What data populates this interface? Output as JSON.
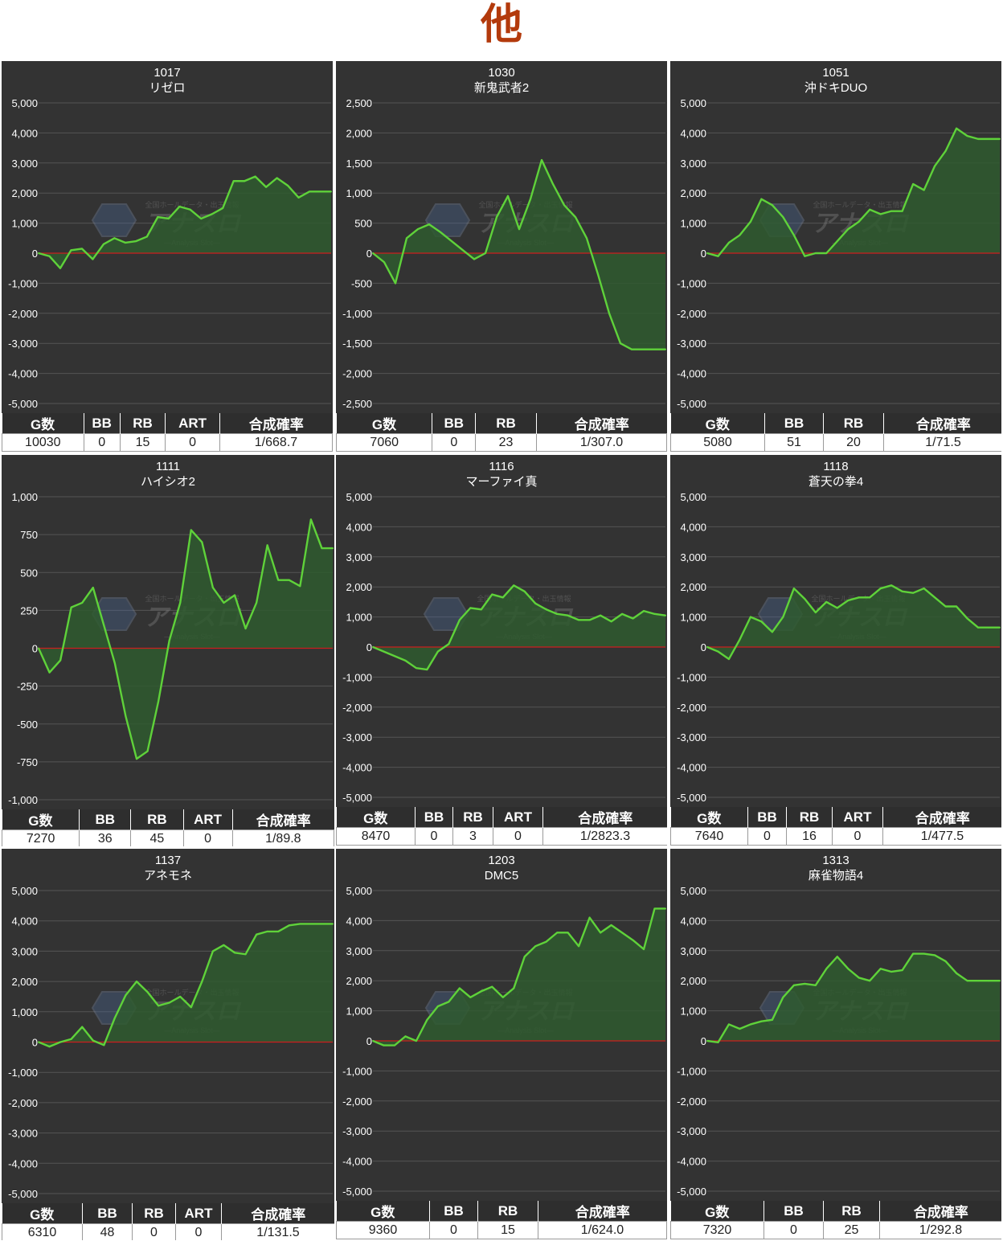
{
  "page": {
    "title": "他"
  },
  "watermark": {
    "top": "全国ホールデータ・出玉情報",
    "main": "アナスロ",
    "sub": "—Analysis Slot—"
  },
  "colors": {
    "background": "#333333",
    "line": "#5fd23a",
    "fill": "#2f5a2f",
    "zero": "#cc1f1f",
    "grid": "#555555"
  },
  "chart_data": [
    {
      "type": "area",
      "number": "1017",
      "title": "リゼロ",
      "ylim": [
        -5000,
        5000
      ],
      "yticks": [
        "5,000",
        "4,000",
        "3,000",
        "2,000",
        "1,000",
        "0",
        "-1,000",
        "-2,000",
        "-3,000",
        "-4,000",
        "-5,000"
      ],
      "values": [
        0,
        -100,
        -500,
        100,
        150,
        -200,
        300,
        500,
        350,
        400,
        550,
        1200,
        1150,
        1550,
        1450,
        1150,
        1300,
        1500,
        2400,
        2400,
        2550,
        2200,
        2500,
        2250,
        1850,
        2050,
        2050,
        2050
      ],
      "headers": [
        "G数",
        "BB",
        "RB",
        "ART",
        "合成確率"
      ],
      "row": [
        "10030",
        "0",
        "15",
        "0",
        "1/668.7"
      ]
    },
    {
      "type": "area",
      "number": "1030",
      "title": "新鬼武者2",
      "ylim": [
        -2500,
        2500
      ],
      "yticks": [
        "2,500",
        "2,000",
        "1,500",
        "1,000",
        "500",
        "0",
        "-500",
        "-1,000",
        "-1,500",
        "-2,000",
        "-2,500"
      ],
      "values": [
        0,
        -150,
        -500,
        250,
        400,
        480,
        350,
        200,
        50,
        -100,
        0,
        600,
        950,
        400,
        900,
        1550,
        1150,
        800,
        600,
        250,
        -350,
        -1000,
        -1500,
        -1600,
        -1600,
        -1600,
        -1600
      ],
      "headers": [
        "G数",
        "BB",
        "RB",
        "合成確率"
      ],
      "row": [
        "7060",
        "0",
        "23",
        "1/307.0"
      ]
    },
    {
      "type": "area",
      "number": "1051",
      "title": "沖ドキDUO",
      "ylim": [
        -5000,
        5000
      ],
      "yticks": [
        "5,000",
        "4,000",
        "3,000",
        "2,000",
        "1,000",
        "0",
        "-1,000",
        "-2,000",
        "-3,000",
        "-4,000",
        "-5,000"
      ],
      "values": [
        0,
        -100,
        350,
        600,
        1050,
        1800,
        1600,
        1200,
        600,
        -100,
        0,
        0,
        400,
        800,
        1050,
        1450,
        1300,
        1400,
        1400,
        2300,
        2100,
        2900,
        3400,
        4150,
        3900,
        3800,
        3800,
        3800
      ],
      "headers": [
        "G数",
        "BB",
        "RB",
        "合成確率"
      ],
      "row": [
        "5080",
        "51",
        "20",
        "1/71.5"
      ]
    },
    {
      "type": "area",
      "number": "1111",
      "title": "ハイシオ2",
      "ylim": [
        -1000,
        1000
      ],
      "yticks": [
        "1,000",
        "750",
        "500",
        "250",
        "0",
        "-250",
        "-500",
        "-750",
        "-1,000"
      ],
      "values": [
        0,
        -160,
        -80,
        270,
        300,
        400,
        150,
        -100,
        -450,
        -730,
        -680,
        -350,
        50,
        300,
        780,
        700,
        400,
        300,
        350,
        130,
        300,
        680,
        450,
        450,
        410,
        850,
        660,
        660
      ],
      "headers": [
        "G数",
        "BB",
        "RB",
        "ART",
        "合成確率"
      ],
      "row": [
        "7270",
        "36",
        "45",
        "0",
        "1/89.8"
      ]
    },
    {
      "type": "area",
      "number": "1116",
      "title": "マーファイ真",
      "ylim": [
        -5000,
        5000
      ],
      "yticks": [
        "5,000",
        "4,000",
        "3,000",
        "2,000",
        "1,000",
        "0",
        "-1,000",
        "-2,000",
        "-3,000",
        "-4,000",
        "-5,000"
      ],
      "values": [
        0,
        -150,
        -300,
        -450,
        -700,
        -750,
        -150,
        100,
        900,
        1300,
        1250,
        1750,
        1650,
        2050,
        1850,
        1450,
        1250,
        1100,
        1050,
        900,
        900,
        1050,
        850,
        1100,
        950,
        1200,
        1100,
        1050
      ],
      "headers": [
        "G数",
        "BB",
        "RB",
        "ART",
        "合成確率"
      ],
      "row": [
        "8470",
        "0",
        "3",
        "0",
        "1/2823.3"
      ]
    },
    {
      "type": "area",
      "number": "1118",
      "title": "蒼天の拳4",
      "ylim": [
        -5000,
        5000
      ],
      "yticks": [
        "5,000",
        "4,000",
        "3,000",
        "2,000",
        "1,000",
        "0",
        "-1,000",
        "-2,000",
        "-3,000",
        "-4,000",
        "-5,000"
      ],
      "values": [
        0,
        -150,
        -400,
        250,
        1000,
        850,
        500,
        1000,
        1950,
        1600,
        1150,
        1500,
        1300,
        1550,
        1650,
        1650,
        1950,
        2050,
        1850,
        1800,
        1950,
        1650,
        1350,
        1350,
        950,
        650,
        650,
        650
      ],
      "headers": [
        "G数",
        "BB",
        "RB",
        "ART",
        "合成確率"
      ],
      "row": [
        "7640",
        "0",
        "16",
        "0",
        "1/477.5"
      ]
    },
    {
      "type": "area",
      "number": "1137",
      "title": "アネモネ",
      "ylim": [
        -5000,
        5000
      ],
      "yticks": [
        "5,000",
        "4,000",
        "3,000",
        "2,000",
        "1,000",
        "0",
        "-1,000",
        "-2,000",
        "-3,000",
        "-4,000",
        "-5,000"
      ],
      "values": [
        0,
        -150,
        0,
        100,
        500,
        50,
        -100,
        800,
        1550,
        2000,
        1650,
        1200,
        1300,
        1500,
        1150,
        2000,
        3000,
        3200,
        2950,
        2900,
        3550,
        3650,
        3650,
        3850,
        3900,
        3900,
        3900,
        3900
      ],
      "headers": [
        "G数",
        "BB",
        "RB",
        "ART",
        "合成確率"
      ],
      "row": [
        "6310",
        "48",
        "0",
        "0",
        "1/131.5"
      ]
    },
    {
      "type": "area",
      "number": "1203",
      "title": "DMC5",
      "ylim": [
        -5000,
        5000
      ],
      "yticks": [
        "5,000",
        "4,000",
        "3,000",
        "2,000",
        "1,000",
        "0",
        "-1,000",
        "-2,000",
        "-3,000",
        "-4,000",
        "-5,000"
      ],
      "values": [
        0,
        -150,
        -150,
        150,
        0,
        700,
        1150,
        1300,
        1750,
        1450,
        1650,
        1800,
        1450,
        1750,
        2800,
        3150,
        3300,
        3600,
        3600,
        3150,
        4100,
        3600,
        3850,
        3600,
        3350,
        3050,
        4400,
        4400
      ],
      "headers": [
        "G数",
        "BB",
        "RB",
        "合成確率"
      ],
      "row": [
        "9360",
        "0",
        "15",
        "1/624.0"
      ]
    },
    {
      "type": "area",
      "number": "1313",
      "title": "麻雀物語4",
      "ylim": [
        -5000,
        5000
      ],
      "yticks": [
        "5,000",
        "4,000",
        "3,000",
        "2,000",
        "1,000",
        "0",
        "-1,000",
        "-2,000",
        "-3,000",
        "-4,000",
        "-5,000"
      ],
      "values": [
        0,
        -50,
        550,
        400,
        550,
        650,
        700,
        1450,
        1850,
        1900,
        1850,
        2400,
        2800,
        2400,
        2100,
        2000,
        2400,
        2300,
        2350,
        2900,
        2900,
        2850,
        2650,
        2250,
        2000,
        2000,
        2000,
        2000
      ],
      "headers": [
        "G数",
        "BB",
        "RB",
        "合成確率"
      ],
      "row": [
        "7320",
        "0",
        "25",
        "1/292.8"
      ]
    }
  ]
}
